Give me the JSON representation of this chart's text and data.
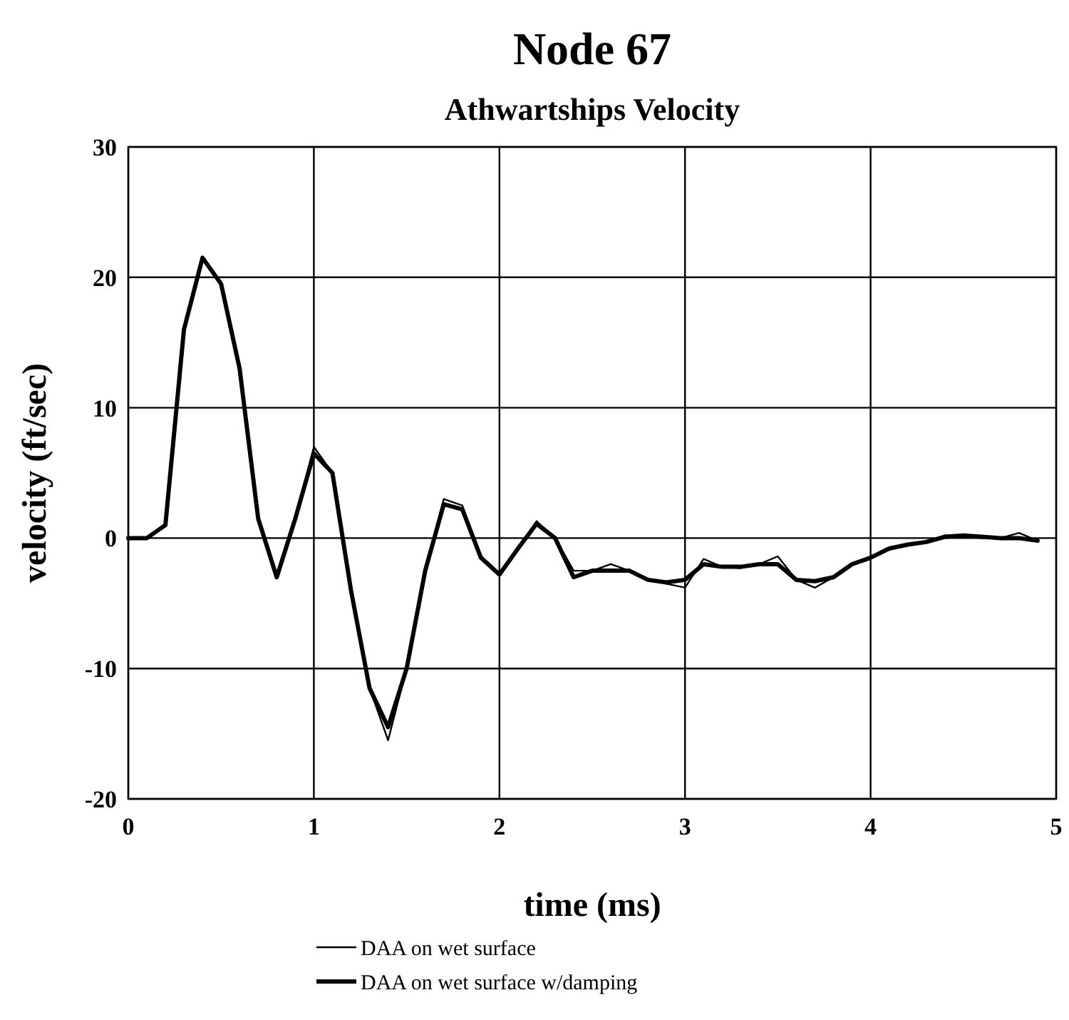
{
  "chart_data": {
    "type": "line",
    "title": "Node 67",
    "subtitle": "Athwartships Velocity",
    "xlabel": "time (ms)",
    "ylabel": "velocity (ft/sec)",
    "x": [
      0,
      0.1,
      0.2,
      0.3,
      0.4,
      0.5,
      0.6,
      0.7,
      0.8,
      0.9,
      1.0,
      1.1,
      1.2,
      1.3,
      1.4,
      1.5,
      1.6,
      1.7,
      1.8,
      1.9,
      2.0,
      2.1,
      2.2,
      2.3,
      2.4,
      2.5,
      2.6,
      2.7,
      2.8,
      2.9,
      3.0,
      3.1,
      3.2,
      3.3,
      3.4,
      3.5,
      3.6,
      3.7,
      3.8,
      3.9,
      4.0,
      4.1,
      4.2,
      4.3,
      4.4,
      4.5,
      4.6,
      4.7,
      4.8,
      4.9
    ],
    "series": [
      {
        "name": "DAA on wet surface",
        "color": "#000000",
        "values": [
          0,
          0,
          1,
          16,
          21.5,
          19.5,
          13,
          1.5,
          -3,
          1.5,
          7,
          5,
          -4,
          -11.5,
          -15.5,
          -10,
          -2.5,
          3,
          2.5,
          -1.5,
          -2.8,
          -0.8,
          1.3,
          0,
          -2.5,
          -2.5,
          -2,
          -2.5,
          -3.2,
          -3.5,
          -3.8,
          -1.6,
          -2.2,
          -2.3,
          -2,
          -1.4,
          -3.2,
          -3.8,
          -3,
          -2,
          -1.5,
          -0.8,
          -0.5,
          -0.3,
          0.2,
          0.2,
          0,
          0,
          0.4,
          -0.2
        ]
      },
      {
        "name": "DAA on wet surface w/damping",
        "color": "#000000",
        "values": [
          0,
          0,
          1,
          16,
          21.5,
          19.5,
          13,
          1.5,
          -3,
          1.5,
          6.5,
          5,
          -4,
          -11.5,
          -14.5,
          -10,
          -2.5,
          2.6,
          2.2,
          -1.5,
          -2.8,
          -0.8,
          1.1,
          0,
          -3,
          -2.5,
          -2.5,
          -2.5,
          -3.2,
          -3.4,
          -3.2,
          -2,
          -2.2,
          -2.2,
          -2,
          -2,
          -3.2,
          -3.3,
          -3,
          -2,
          -1.5,
          -0.8,
          -0.5,
          -0.3,
          0.1,
          0.2,
          0.1,
          0,
          0,
          -0.2
        ]
      }
    ],
    "xlim": [
      0,
      5
    ],
    "xticks": [
      0,
      1,
      2,
      3,
      4,
      5
    ],
    "ylim": [
      -20,
      30
    ],
    "yticks": [
      -20,
      -10,
      0,
      10,
      20,
      30
    ],
    "grid": true,
    "legend": "bottom",
    "marker": "none",
    "line_style": "solid"
  }
}
